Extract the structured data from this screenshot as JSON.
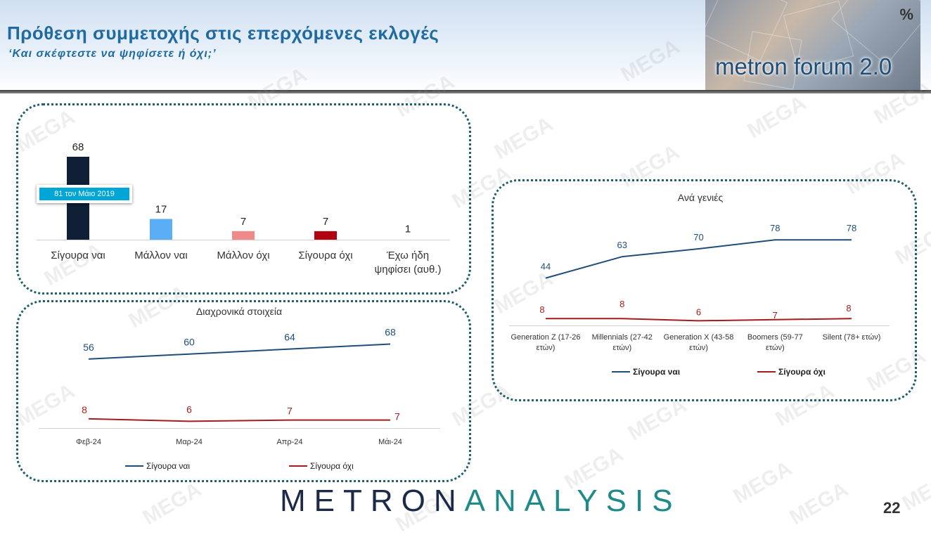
{
  "header": {
    "title": "Πρόθεση συμμετοχής στις επερχόμενες εκλογές",
    "subtitle": "‘Και σκέφτεστε να ψηφίσετε ή όχι;’"
  },
  "logo": {
    "text": "metron forum 2.0",
    "symbol": "%"
  },
  "watermark": "MEGA",
  "footer": {
    "brand_part1": "METRON",
    "brand_part2": "ANALYSIS",
    "page_number": "22"
  },
  "colors": {
    "navy": "#0e1f36",
    "light_blue": "#5aaef5",
    "pink": "#f08a8a",
    "dark_red": "#b00012",
    "line_blue": "#1f4e79",
    "line_red": "#a51c1c",
    "panel_border": "#1f5f6e"
  },
  "callout": {
    "text": "81 τον Μάιο 2019"
  },
  "chart_data": [
    {
      "type": "bar",
      "categories": [
        "Σίγουρα ναι",
        "Μάλλον ναι",
        "Μάλλον όχι",
        "Σίγουρα όχι",
        "Έχω ήδη ψηφίσει (αυθ.)"
      ],
      "category_lines": [
        [
          "Σίγουρα ναι"
        ],
        [
          "Μάλλον ναι"
        ],
        [
          "Μάλλον όχι"
        ],
        [
          "Σίγουρα όχι"
        ],
        [
          "Έχω ήδη",
          "ψηφίσει (αυθ.)"
        ]
      ],
      "values": [
        68,
        17,
        7,
        7,
        1
      ],
      "bar_colors": [
        "#0e1f36",
        "#5aaef5",
        "#f08a8a",
        "#b00012",
        "#cccccc"
      ],
      "ylim": [
        0,
        70
      ]
    },
    {
      "type": "line",
      "title": "Διαχρονικά στοιχεία",
      "categories": [
        "Φεβ-24",
        "Μαρ-24",
        "Απρ-24",
        "Μάι-24"
      ],
      "series": [
        {
          "name": "Σίγουρα ναι",
          "values": [
            56,
            60,
            64,
            68
          ],
          "color": "#1f4e79"
        },
        {
          "name": "Σίγουρα όχι",
          "values": [
            8,
            6,
            7,
            7
          ],
          "color": "#a51c1c"
        }
      ],
      "legend": "bottom"
    },
    {
      "type": "line",
      "title": "Ανά γενιές",
      "categories": [
        "Generation Z (17-26 ετών)",
        "Millennials (27-42 ετών)",
        "Generation X (43-58 ετών)",
        "Boomers (59-77 ετών)",
        "Silent (78+ ετών)"
      ],
      "category_lines": [
        [
          "Generation Z (17-26",
          "ετών)"
        ],
        [
          "Millennials (27-42",
          "ετών)"
        ],
        [
          "Generation X (43-58",
          "ετών)"
        ],
        [
          "Boomers (59-77",
          "ετών)"
        ],
        [
          "Silent (78+ ετών)"
        ]
      ],
      "series": [
        {
          "name": "Σίγουρα ναι",
          "values": [
            44,
            63,
            70,
            78,
            78
          ],
          "color": "#1f4e79"
        },
        {
          "name": "Σίγουρα όχι",
          "values": [
            8,
            8,
            6,
            7,
            8
          ],
          "color": "#a51c1c"
        }
      ],
      "legend": "bottom"
    }
  ]
}
